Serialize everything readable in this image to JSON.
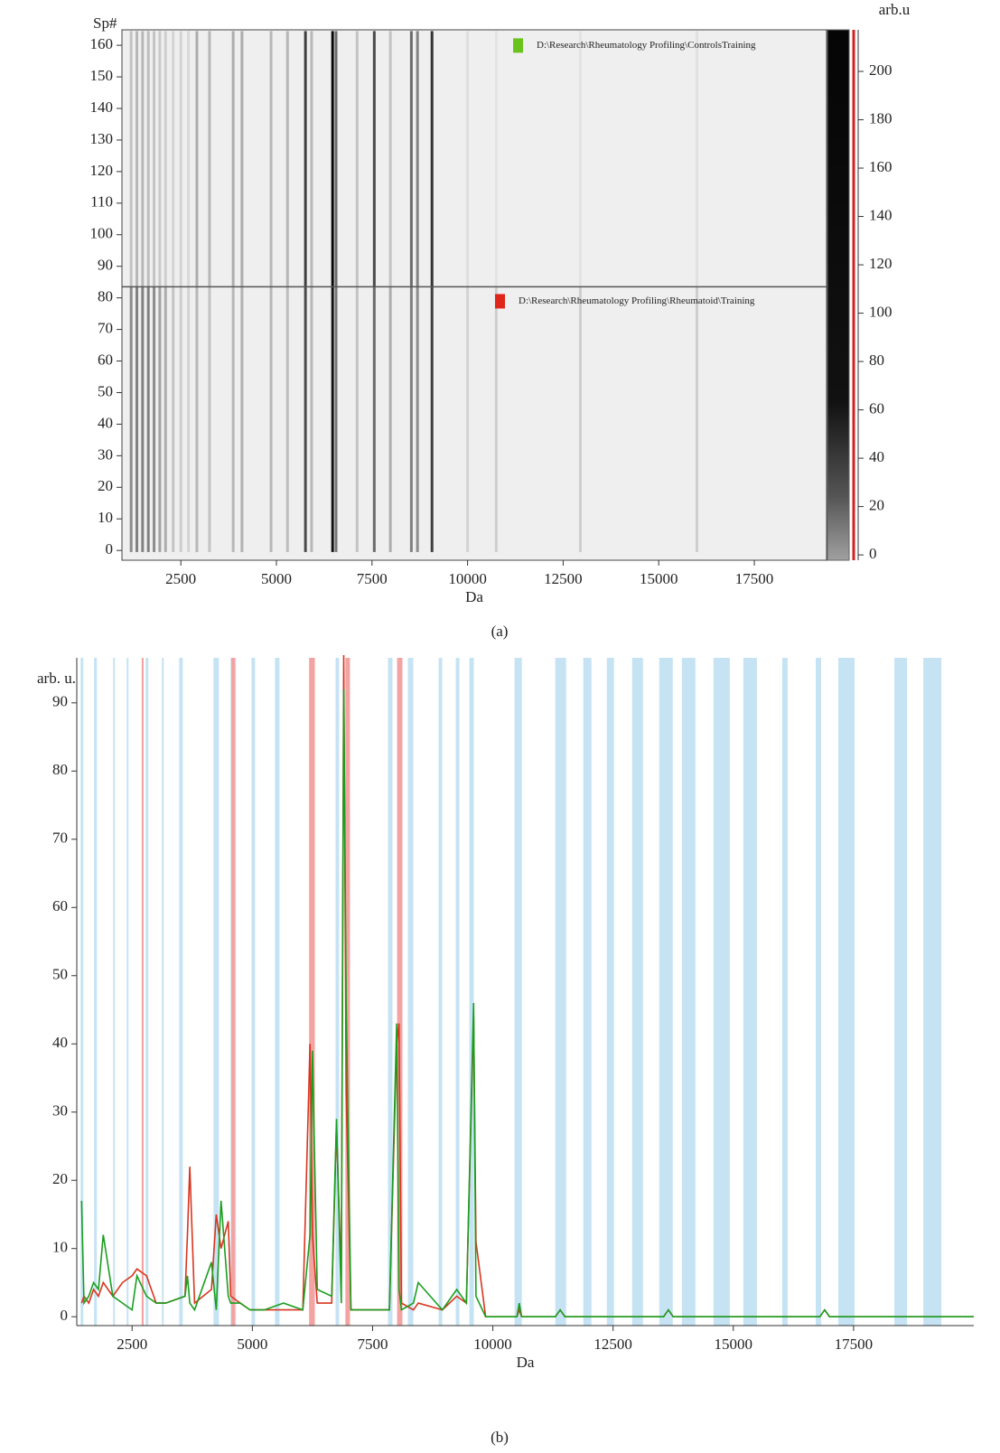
{
  "chart_data": [
    {
      "type": "heatmap",
      "caption": "(a)",
      "xlabel": "Da",
      "ylabel": "Sp#",
      "colorbar_label": "arb.u",
      "xlim": [
        960,
        19390
      ],
      "xticks": [
        2500,
        5000,
        7500,
        10000,
        12500,
        15000,
        17500
      ],
      "ylim": [
        -3.1,
        164.9
      ],
      "yticks": [
        0,
        10,
        20,
        30,
        40,
        50,
        60,
        70,
        80,
        90,
        100,
        110,
        120,
        130,
        140,
        150,
        160
      ],
      "colorbar_lim": [
        -2.2,
        217.2
      ],
      "colorbar_ticks": [
        0,
        20,
        40,
        60,
        80,
        100,
        120,
        140,
        160,
        180,
        200
      ],
      "band_x": [
        1200,
        1350,
        1500,
        1650,
        1800,
        1950,
        2100,
        2300,
        2500,
        2700,
        2920,
        3250,
        3870,
        4100,
        4860,
        5290,
        5760,
        5920,
        6470,
        6560,
        7110,
        7560,
        7980,
        8530,
        8690,
        9070,
        10000,
        10750,
        12950,
        16000
      ],
      "groups": [
        {
          "name": "D:\\Research\\Rheumatology Profiling\\ControlsTraining",
          "color": "#6ac31a",
          "rows": [
            84,
            164
          ],
          "intensities": [
            40,
            50,
            50,
            45,
            40,
            35,
            30,
            25,
            25,
            20,
            60,
            50,
            60,
            60,
            50,
            50,
            160,
            50,
            210,
            120,
            40,
            150,
            40,
            120,
            100,
            170,
            15,
            10,
            10,
            12
          ]
        },
        {
          "name": "D:\\Research\\Rheumatology Profiling\\Rheumatoid\\Training",
          "color": "#e0261b",
          "rows": [
            0,
            83
          ],
          "intensities": [
            90,
            100,
            100,
            100,
            90,
            70,
            60,
            40,
            30,
            25,
            50,
            40,
            50,
            55,
            50,
            45,
            150,
            50,
            200,
            110,
            40,
            120,
            60,
            100,
            90,
            160,
            25,
            30,
            30,
            30
          ]
        }
      ]
    },
    {
      "type": "line",
      "caption": "(b)",
      "xlabel": "Da",
      "ylabel": "arb. u.",
      "xlim": [
        1350,
        20000
      ],
      "xticks": [
        2500,
        5000,
        7500,
        10000,
        12500,
        15000,
        17500
      ],
      "ylim": [
        -1.3,
        96.6
      ],
      "yticks": [
        0,
        10,
        20,
        30,
        40,
        50,
        60,
        70,
        80,
        90
      ],
      "regions": [
        {
          "color": "#c6e3f4",
          "ranges": [
            [
              1430,
              1485
            ],
            [
              1710,
              1767
            ],
            [
              2105,
              2143
            ],
            [
              2387,
              2425
            ],
            [
              2782,
              2838
            ],
            [
              3120,
              3158
            ],
            [
              3478,
              3553
            ],
            [
              4192,
              4305
            ],
            [
              4549,
              4662
            ],
            [
              4982,
              5057
            ],
            [
              5470,
              5564
            ],
            [
              6185,
              6279
            ],
            [
              6730,
              6805
            ],
            [
              7820,
              7914
            ],
            [
              8234,
              8347
            ],
            [
              8873,
              8948
            ],
            [
              9230,
              9306
            ],
            [
              9512,
              9606
            ],
            [
              10452,
              10603
            ],
            [
              11298,
              11524
            ],
            [
              11881,
              12050
            ],
            [
              12370,
              12520
            ],
            [
              12896,
              13122
            ],
            [
              13460,
              13742
            ],
            [
              13930,
              14212
            ],
            [
              14588,
              14927
            ],
            [
              15209,
              15491
            ],
            [
              16017,
              16130
            ],
            [
              16713,
              16826
            ],
            [
              17183,
              17521
            ],
            [
              18348,
              18612
            ],
            [
              18950,
              19326
            ]
          ]
        },
        {
          "color": "#f4a3a3",
          "ranges": [
            [
              2700,
              2740
            ],
            [
              4560,
              4640
            ],
            [
              6180,
              6300
            ],
            [
              6935,
              7030
            ],
            [
              8010,
              8120
            ]
          ]
        }
      ],
      "x": [
        1450,
        1500,
        1600,
        1700,
        1800,
        1900,
        2100,
        2300,
        2500,
        2600,
        2800,
        3000,
        3200,
        3600,
        3650,
        3700,
        3800,
        4150,
        4250,
        4350,
        4500,
        4550,
        4750,
        4950,
        5250,
        5650,
        6050,
        6200,
        6250,
        6350,
        6650,
        6750,
        6850,
        6900,
        6950,
        7050,
        7850,
        8000,
        8050,
        8100,
        8350,
        8450,
        8950,
        9250,
        9450,
        9600,
        9650,
        9850,
        10500,
        10550,
        10600,
        11300,
        11400,
        11500,
        13550,
        13650,
        13750,
        16800,
        16900,
        17000,
        20000
      ],
      "series": [
        {
          "color": "#d9351f",
          "values": [
            2,
            3,
            2,
            4,
            3,
            5,
            3,
            5,
            6,
            7,
            6,
            2,
            2,
            3,
            12,
            22,
            2,
            4,
            15,
            10,
            14,
            3,
            2,
            1,
            1,
            1,
            1,
            40,
            12,
            2,
            2,
            28,
            5,
            97,
            33,
            1,
            1,
            40,
            43,
            2,
            1,
            2,
            1,
            3,
            2,
            44,
            11,
            0,
            0,
            1,
            0,
            0,
            1,
            0,
            0,
            1,
            0,
            0,
            1,
            0,
            0
          ]
        },
        {
          "color": "#1a9e1f",
          "values": [
            17,
            2,
            3,
            5,
            4,
            12,
            3,
            2,
            1,
            6,
            3,
            2,
            2,
            3,
            6,
            2,
            1,
            8,
            1,
            17,
            3,
            2,
            2,
            1,
            1,
            2,
            1,
            12,
            39,
            4,
            3,
            29,
            2,
            92,
            46,
            1,
            1,
            43,
            4,
            1,
            2,
            5,
            1,
            4,
            2,
            46,
            3,
            0,
            0,
            2,
            0,
            0,
            1,
            0,
            0,
            1,
            0,
            0,
            1,
            0,
            0
          ]
        }
      ]
    }
  ]
}
